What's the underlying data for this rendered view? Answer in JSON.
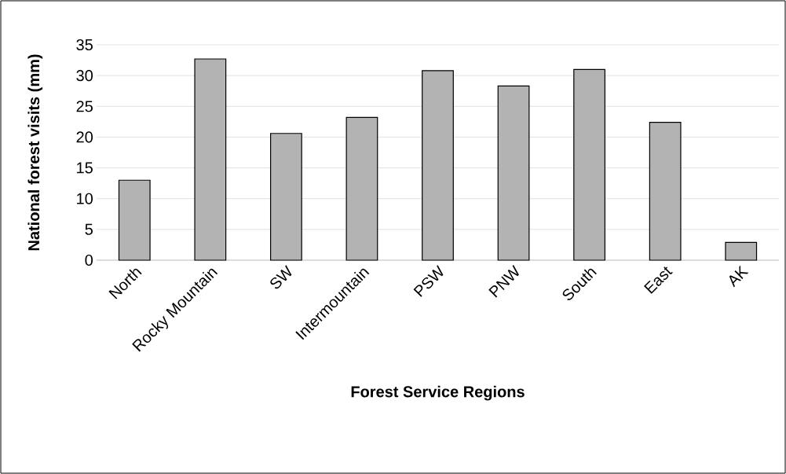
{
  "chart_data": {
    "type": "bar",
    "xlabel": "Forest Service Regions",
    "ylabel": "National forest visits (mm)",
    "categories": [
      "North",
      "Rocky Mountain",
      "SW",
      "Intermountain",
      "PSW",
      "PNW",
      "South",
      "East",
      "AK"
    ],
    "values": [
      13.0,
      32.7,
      20.6,
      23.2,
      30.8,
      28.3,
      31.0,
      22.4,
      2.9
    ],
    "color": "#b3b3b3",
    "ylim": [
      0,
      35
    ],
    "yticks": [
      0,
      5,
      10,
      15,
      20,
      25,
      30,
      35
    ],
    "grid": "y"
  }
}
